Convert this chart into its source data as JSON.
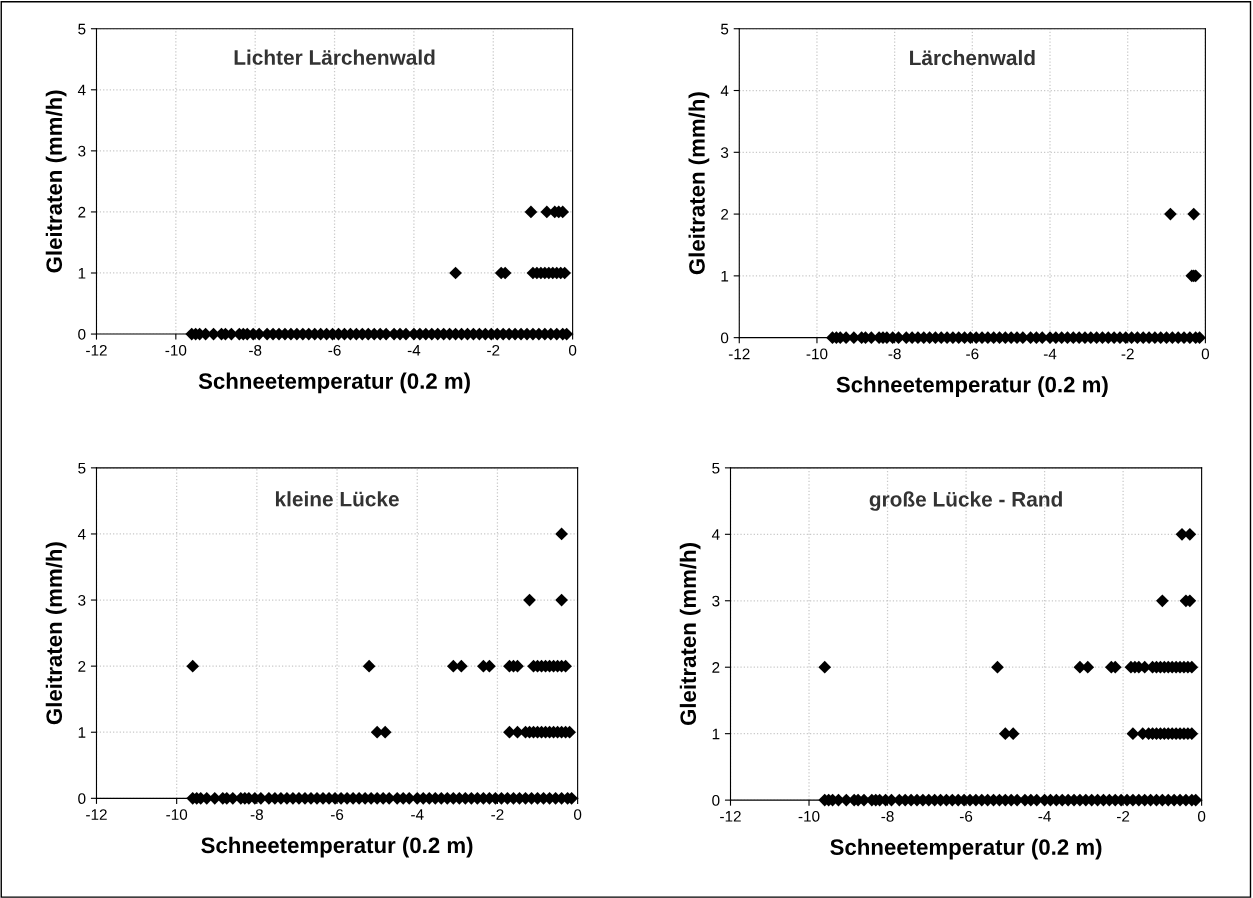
{
  "chart_data": [
    {
      "type": "scatter",
      "title": "Lichter Lärchenwald",
      "xlabel": "Schneetemperatur (0.2 m)",
      "ylabel": "Gleitraten (mm/h)",
      "xlim": [
        -12,
        0
      ],
      "ylim": [
        0,
        5
      ],
      "xticks": [
        -12,
        -10,
        -8,
        -6,
        -4,
        -2,
        0
      ],
      "yticks": [
        0,
        1,
        2,
        3,
        4,
        5
      ],
      "grid": true,
      "marker": "diamond",
      "series": [
        {
          "color": "#000000",
          "x": [
            -9.6,
            -9.5,
            -9.4,
            -9.25,
            -9.05,
            -8.85,
            -8.75,
            -8.6,
            -8.4,
            -8.3,
            -8.2,
            -8.05,
            -7.9,
            -7.7,
            -7.55,
            -7.4,
            -7.25,
            -7.1,
            -6.95,
            -6.8,
            -6.65,
            -6.5,
            -6.35,
            -6.2,
            -6.05,
            -5.9,
            -5.75,
            -5.6,
            -5.45,
            -5.3,
            -5.15,
            -5.0,
            -4.85,
            -4.7,
            -4.5,
            -4.35,
            -4.2,
            -4.0,
            -3.85,
            -3.7,
            -3.55,
            -3.4,
            -3.25,
            -3.1,
            -2.95,
            -2.8,
            -2.65,
            -2.5,
            -2.35,
            -2.2,
            -2.05,
            -1.9,
            -1.75,
            -1.6,
            -1.45,
            -1.3,
            -1.15,
            -1.0,
            -0.85,
            -0.7,
            -0.55,
            -0.4,
            -0.25,
            -0.15,
            -1.05,
            -0.65,
            -0.45,
            -0.35,
            -0.25,
            -2.95,
            -1.8,
            -1.7,
            -1.0,
            -0.9,
            -0.8,
            -0.7,
            -0.6,
            -0.5,
            -0.4,
            -0.3,
            -0.2
          ],
          "values": [
            0,
            0,
            0,
            0,
            0,
            0,
            0,
            0,
            0,
            0,
            0,
            0,
            0,
            0,
            0,
            0,
            0,
            0,
            0,
            0,
            0,
            0,
            0,
            0,
            0,
            0,
            0,
            0,
            0,
            0,
            0,
            0,
            0,
            0,
            0,
            0,
            0,
            0,
            0,
            0,
            0,
            0,
            0,
            0,
            0,
            0,
            0,
            0,
            0,
            0,
            0,
            0,
            0,
            0,
            0,
            0,
            0,
            0,
            0,
            0,
            0,
            0,
            0,
            0,
            2,
            2,
            2,
            2,
            2,
            1,
            1,
            1,
            1,
            1,
            1,
            1,
            1,
            1,
            1,
            1,
            1
          ]
        }
      ]
    },
    {
      "type": "scatter",
      "title": "Lärchenwald",
      "xlabel": "Schneetemperatur (0.2 m)",
      "ylabel": "Gleitraten (mm/h)",
      "xlim": [
        -12,
        0
      ],
      "ylim": [
        0,
        5
      ],
      "xticks": [
        -12,
        -10,
        -8,
        -6,
        -4,
        -2,
        0
      ],
      "yticks": [
        0,
        1,
        2,
        3,
        4,
        5
      ],
      "grid": true,
      "marker": "diamond",
      "series": [
        {
          "color": "#000000",
          "x": [
            -9.6,
            -9.5,
            -9.4,
            -9.25,
            -9.05,
            -8.85,
            -8.75,
            -8.6,
            -8.4,
            -8.3,
            -8.2,
            -8.05,
            -7.9,
            -7.7,
            -7.55,
            -7.4,
            -7.25,
            -7.1,
            -6.95,
            -6.8,
            -6.65,
            -6.5,
            -6.35,
            -6.2,
            -6.05,
            -5.9,
            -5.75,
            -5.6,
            -5.45,
            -5.3,
            -5.15,
            -5.0,
            -4.85,
            -4.7,
            -4.5,
            -4.35,
            -4.2,
            -4.0,
            -3.85,
            -3.7,
            -3.55,
            -3.4,
            -3.25,
            -3.1,
            -2.95,
            -2.8,
            -2.65,
            -2.5,
            -2.35,
            -2.2,
            -2.05,
            -1.9,
            -1.75,
            -1.6,
            -1.45,
            -1.3,
            -1.15,
            -1.0,
            -0.85,
            -0.7,
            -0.55,
            -0.4,
            -0.25,
            -0.15,
            -0.9,
            -0.3,
            -0.35,
            -0.3,
            -0.25
          ],
          "values": [
            0,
            0,
            0,
            0,
            0,
            0,
            0,
            0,
            0,
            0,
            0,
            0,
            0,
            0,
            0,
            0,
            0,
            0,
            0,
            0,
            0,
            0,
            0,
            0,
            0,
            0,
            0,
            0,
            0,
            0,
            0,
            0,
            0,
            0,
            0,
            0,
            0,
            0,
            0,
            0,
            0,
            0,
            0,
            0,
            0,
            0,
            0,
            0,
            0,
            0,
            0,
            0,
            0,
            0,
            0,
            0,
            0,
            0,
            0,
            0,
            0,
            0,
            0,
            0,
            2,
            2,
            1,
            1,
            1
          ]
        }
      ]
    },
    {
      "type": "scatter",
      "title": "kleine Lücke",
      "xlabel": "Schneetemperatur (0.2 m)",
      "ylabel": "Gleitraten (mm/h)",
      "xlim": [
        -12,
        0
      ],
      "ylim": [
        0,
        5
      ],
      "xticks": [
        -12,
        -10,
        -8,
        -6,
        -4,
        -2,
        0
      ],
      "yticks": [
        0,
        1,
        2,
        3,
        4,
        5
      ],
      "grid": true,
      "marker": "diamond",
      "series": [
        {
          "color": "#000000",
          "x": [
            -9.6,
            -9.5,
            -9.4,
            -9.25,
            -9.05,
            -8.85,
            -8.75,
            -8.6,
            -8.4,
            -8.3,
            -8.2,
            -8.05,
            -7.9,
            -7.7,
            -7.55,
            -7.4,
            -7.25,
            -7.1,
            -6.95,
            -6.8,
            -6.65,
            -6.5,
            -6.35,
            -6.2,
            -6.05,
            -5.9,
            -5.75,
            -5.6,
            -5.45,
            -5.3,
            -5.15,
            -5.0,
            -4.85,
            -4.7,
            -4.5,
            -4.35,
            -4.2,
            -4.0,
            -3.85,
            -3.7,
            -3.55,
            -3.4,
            -3.25,
            -3.1,
            -2.95,
            -2.8,
            -2.65,
            -2.5,
            -2.35,
            -2.2,
            -2.05,
            -1.9,
            -1.75,
            -1.6,
            -1.45,
            -1.3,
            -1.15,
            -1.0,
            -0.85,
            -0.7,
            -0.55,
            -0.4,
            -0.25,
            -0.15,
            -0.4,
            -1.2,
            -0.4,
            -9.6,
            -5.2,
            -3.1,
            -2.9,
            -2.35,
            -2.2,
            -1.7,
            -1.6,
            -1.5,
            -1.1,
            -1.0,
            -0.9,
            -0.8,
            -0.7,
            -0.6,
            -0.5,
            -0.4,
            -0.3,
            -5.0,
            -4.8,
            -1.7,
            -1.5,
            -1.3,
            -1.2,
            -1.1,
            -1.0,
            -0.9,
            -0.8,
            -0.7,
            -0.6,
            -0.5,
            -0.4,
            -0.3,
            -0.2
          ],
          "values": [
            0,
            0,
            0,
            0,
            0,
            0,
            0,
            0,
            0,
            0,
            0,
            0,
            0,
            0,
            0,
            0,
            0,
            0,
            0,
            0,
            0,
            0,
            0,
            0,
            0,
            0,
            0,
            0,
            0,
            0,
            0,
            0,
            0,
            0,
            0,
            0,
            0,
            0,
            0,
            0,
            0,
            0,
            0,
            0,
            0,
            0,
            0,
            0,
            0,
            0,
            0,
            0,
            0,
            0,
            0,
            0,
            0,
            0,
            0,
            0,
            0,
            0,
            0,
            0,
            4,
            3,
            3,
            2,
            2,
            2,
            2,
            2,
            2,
            2,
            2,
            2,
            2,
            2,
            2,
            2,
            2,
            2,
            2,
            2,
            2,
            1,
            1,
            1,
            1,
            1,
            1,
            1,
            1,
            1,
            1,
            1,
            1,
            1,
            1,
            1,
            1
          ]
        }
      ]
    },
    {
      "type": "scatter",
      "title": "große Lücke - Rand",
      "xlabel": "Schneetemperatur (0.2 m)",
      "ylabel": "Gleitraten (mm/h)",
      "xlim": [
        -12,
        0
      ],
      "ylim": [
        0,
        5
      ],
      "xticks": [
        -12,
        -10,
        -8,
        -6,
        -4,
        -2,
        0
      ],
      "yticks": [
        0,
        1,
        2,
        3,
        4,
        5
      ],
      "grid": true,
      "marker": "diamond",
      "series": [
        {
          "color": "#000000",
          "x": [
            -9.6,
            -9.5,
            -9.4,
            -9.25,
            -9.05,
            -8.85,
            -8.75,
            -8.6,
            -8.4,
            -8.3,
            -8.2,
            -8.05,
            -7.9,
            -7.7,
            -7.55,
            -7.4,
            -7.25,
            -7.1,
            -6.95,
            -6.8,
            -6.65,
            -6.5,
            -6.35,
            -6.2,
            -6.05,
            -5.9,
            -5.75,
            -5.6,
            -5.45,
            -5.3,
            -5.15,
            -5.0,
            -4.85,
            -4.7,
            -4.5,
            -4.35,
            -4.2,
            -4.0,
            -3.85,
            -3.7,
            -3.55,
            -3.4,
            -3.25,
            -3.1,
            -2.95,
            -2.8,
            -2.65,
            -2.5,
            -2.35,
            -2.2,
            -2.05,
            -1.9,
            -1.75,
            -1.6,
            -1.45,
            -1.3,
            -1.15,
            -1.0,
            -0.85,
            -0.7,
            -0.55,
            -0.4,
            -0.25,
            -0.15,
            -0.5,
            -0.3,
            -1.0,
            -0.4,
            -0.3,
            -9.6,
            -5.2,
            -3.1,
            -2.9,
            -2.3,
            -2.2,
            -1.8,
            -1.7,
            -1.6,
            -1.45,
            -1.25,
            -1.15,
            -1.05,
            -0.95,
            -0.85,
            -0.75,
            -0.65,
            -0.55,
            -0.45,
            -0.35,
            -0.25,
            -5.0,
            -4.8,
            -1.75,
            -1.5,
            -1.35,
            -1.25,
            -1.15,
            -1.05,
            -0.95,
            -0.85,
            -0.75,
            -0.65,
            -0.55,
            -0.45,
            -0.35,
            -0.25
          ],
          "values": [
            0,
            0,
            0,
            0,
            0,
            0,
            0,
            0,
            0,
            0,
            0,
            0,
            0,
            0,
            0,
            0,
            0,
            0,
            0,
            0,
            0,
            0,
            0,
            0,
            0,
            0,
            0,
            0,
            0,
            0,
            0,
            0,
            0,
            0,
            0,
            0,
            0,
            0,
            0,
            0,
            0,
            0,
            0,
            0,
            0,
            0,
            0,
            0,
            0,
            0,
            0,
            0,
            0,
            0,
            0,
            0,
            0,
            0,
            0,
            0,
            0,
            0,
            0,
            0,
            4,
            4,
            3,
            3,
            3,
            2,
            2,
            2,
            2,
            2,
            2,
            2,
            2,
            2,
            2,
            2,
            2,
            2,
            2,
            2,
            2,
            2,
            2,
            2,
            2,
            2,
            1,
            1,
            1,
            1,
            1,
            1,
            1,
            1,
            1,
            1,
            1,
            1,
            1,
            1,
            1,
            1
          ]
        }
      ]
    }
  ]
}
